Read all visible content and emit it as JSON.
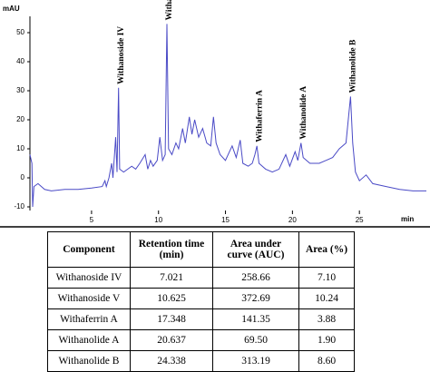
{
  "chart_data": {
    "type": "line",
    "y_label": "mAU",
    "x_label": "min",
    "color": "#4a4ac6",
    "xlim": [
      0.4,
      30
    ],
    "xticks": [
      5,
      10,
      15,
      20,
      25
    ],
    "ylim": [
      -10,
      55
    ],
    "yticks": [
      -10,
      0,
      10,
      20,
      30,
      40,
      50
    ],
    "x": [
      0.4,
      0.55,
      0.6,
      0.7,
      1.0,
      1.5,
      2,
      3,
      4,
      5,
      5.8,
      6.0,
      6.1,
      6.3,
      6.5,
      6.6,
      6.8,
      6.9,
      7.021,
      7.1,
      7.4,
      7.7,
      8.0,
      8.3,
      8.6,
      9.0,
      9.2,
      9.4,
      9.6,
      9.9,
      10.1,
      10.3,
      10.5,
      10.625,
      10.75,
      11.0,
      11.3,
      11.5,
      11.8,
      12.0,
      12.3,
      12.5,
      12.7,
      13.0,
      13.3,
      13.6,
      13.9,
      14.1,
      14.3,
      14.6,
      15.0,
      15.5,
      15.8,
      16.1,
      16.3,
      16.7,
      17.0,
      17.2,
      17.348,
      17.5,
      18.0,
      18.5,
      19.0,
      19.5,
      19.8,
      20.2,
      20.4,
      20.637,
      20.8,
      21.3,
      22,
      22.5,
      23,
      23.5,
      24,
      24.338,
      24.5,
      24.7,
      25,
      25.5,
      26,
      27,
      28,
      29,
      30
    ],
    "values": [
      8,
      5,
      -10,
      -3,
      -2,
      -4,
      -4.5,
      -4,
      -4,
      -3.5,
      -3,
      -1,
      -3,
      0,
      5,
      0,
      14,
      2,
      31,
      3,
      2,
      3,
      4,
      3,
      5,
      8,
      3,
      6,
      4,
      6,
      14,
      6,
      8,
      53,
      10,
      8,
      12,
      10,
      17,
      12,
      21,
      15,
      20,
      14,
      17,
      12,
      11,
      21,
      12,
      8,
      6,
      11,
      7,
      13,
      5,
      4,
      5,
      8,
      11,
      5,
      3,
      2,
      3,
      8,
      4,
      9,
      6,
      12,
      7,
      5,
      5,
      6,
      7,
      10,
      12,
      28,
      12,
      2,
      -1,
      1,
      -2,
      -3,
      -4,
      -4.5,
      -4.5
    ],
    "annotations": [
      {
        "text": "Withanoside IV",
        "x": 7.021,
        "y": 31
      },
      {
        "text": "Withanoside V",
        "x": 10.625,
        "y": 53
      },
      {
        "text": "Withaferrin A",
        "x": 17.348,
        "y": 11
      },
      {
        "text": "Withanolide A",
        "x": 20.637,
        "y": 12
      },
      {
        "text": "Withanolide B",
        "x": 24.338,
        "y": 28
      }
    ]
  },
  "table": {
    "header": [
      "Component",
      "Retention time (min)",
      "Area under curve (AUC)",
      "Area (%)"
    ],
    "rows": [
      [
        "Withanoside IV",
        "7.021",
        "258.66",
        "7.10"
      ],
      [
        "Withanoside V",
        "10.625",
        "372.69",
        "10.24"
      ],
      [
        "Withaferrin A",
        "17.348",
        "141.35",
        "3.88"
      ],
      [
        "Withanolide A",
        "20.637",
        "69.50",
        "1.90"
      ],
      [
        "Withanolide B",
        "24.338",
        "313.19",
        "8.60"
      ]
    ]
  }
}
